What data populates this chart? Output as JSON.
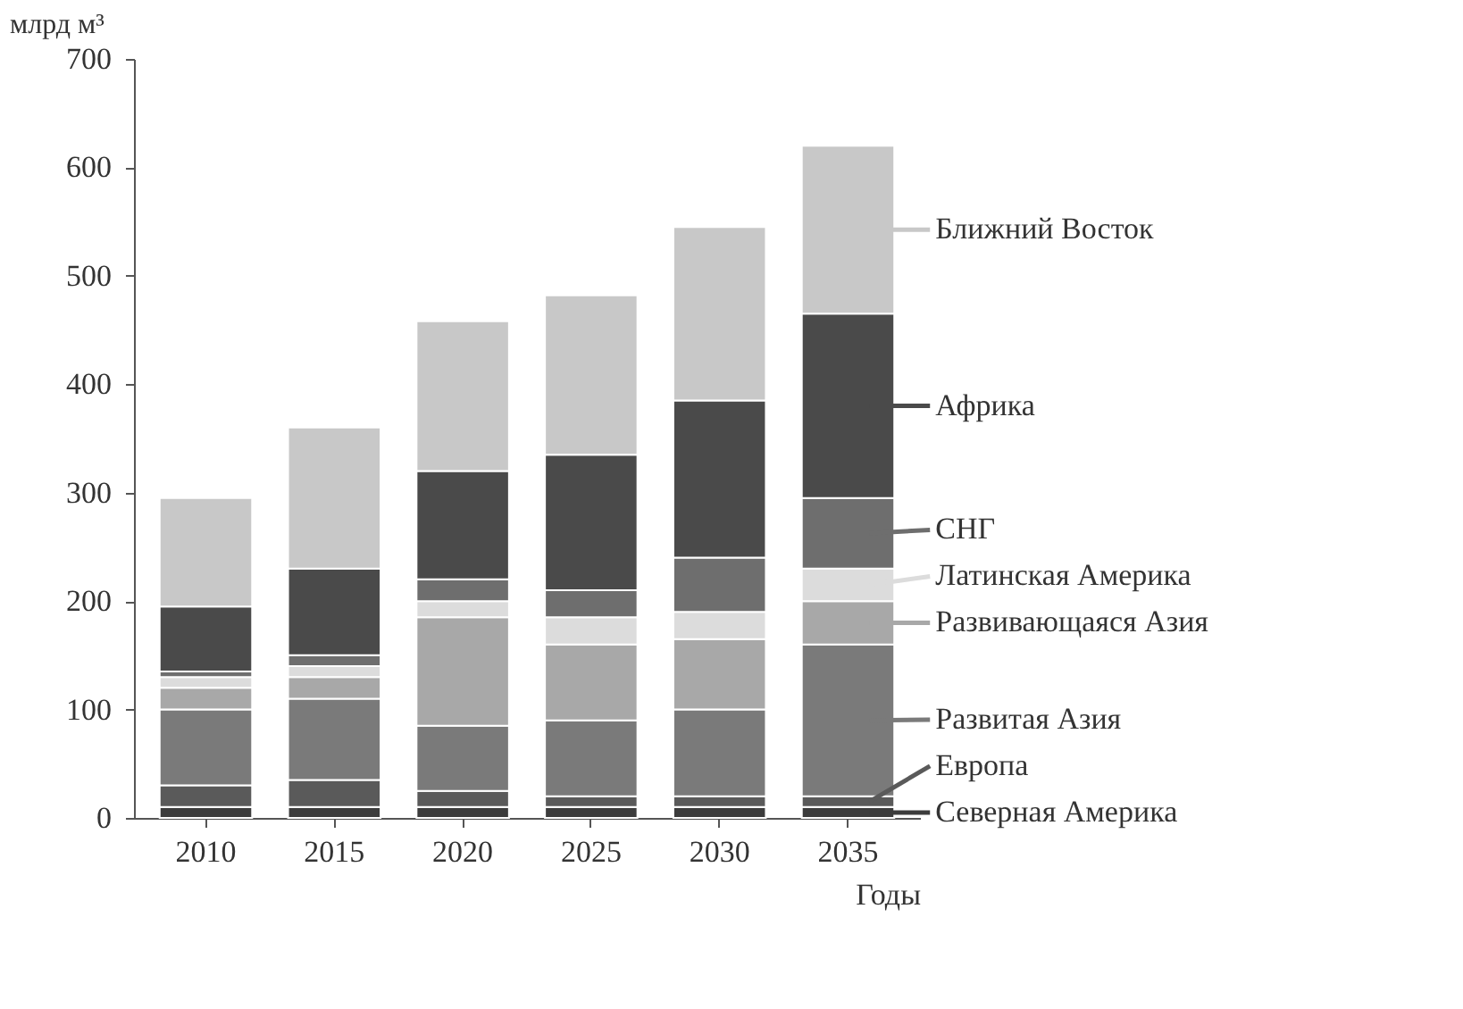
{
  "chart_data": {
    "type": "bar",
    "stacked": true,
    "xlabel": "Годы",
    "ylabel": "млрд м³",
    "legend": "right",
    "grid": false,
    "categories": [
      "2010",
      "2015",
      "2020",
      "2025",
      "2030",
      "2035"
    ],
    "ylim": [
      0,
      700
    ],
    "yticks": [
      0,
      100,
      200,
      300,
      400,
      500,
      600,
      700
    ],
    "series": [
      {
        "name": "Северная Америка",
        "color": "#3c3c3c",
        "values": [
          10,
          10,
          10,
          10,
          10,
          10
        ]
      },
      {
        "name": "Европа",
        "color": "#5a5a5a",
        "values": [
          20,
          25,
          15,
          10,
          10,
          10
        ]
      },
      {
        "name": "Развитая Азия",
        "color": "#7a7a7a",
        "values": [
          70,
          75,
          60,
          70,
          80,
          140
        ]
      },
      {
        "name": "Развивающаяся Азия",
        "color": "#a8a8a8",
        "values": [
          20,
          20,
          100,
          70,
          65,
          40
        ]
      },
      {
        "name": "Латинская Америка",
        "color": "#dcdcdc",
        "values": [
          10,
          10,
          15,
          25,
          25,
          30
        ]
      },
      {
        "name": "СНГ",
        "color": "#6e6e6e",
        "values": [
          5,
          10,
          20,
          25,
          50,
          65
        ]
      },
      {
        "name": "Африка",
        "color": "#4a4a4a",
        "values": [
          60,
          80,
          100,
          125,
          145,
          170
        ]
      },
      {
        "name": "Ближний Восток",
        "color": "#c8c8c8",
        "values": [
          100,
          130,
          138,
          147,
          160,
          155
        ]
      }
    ]
  }
}
